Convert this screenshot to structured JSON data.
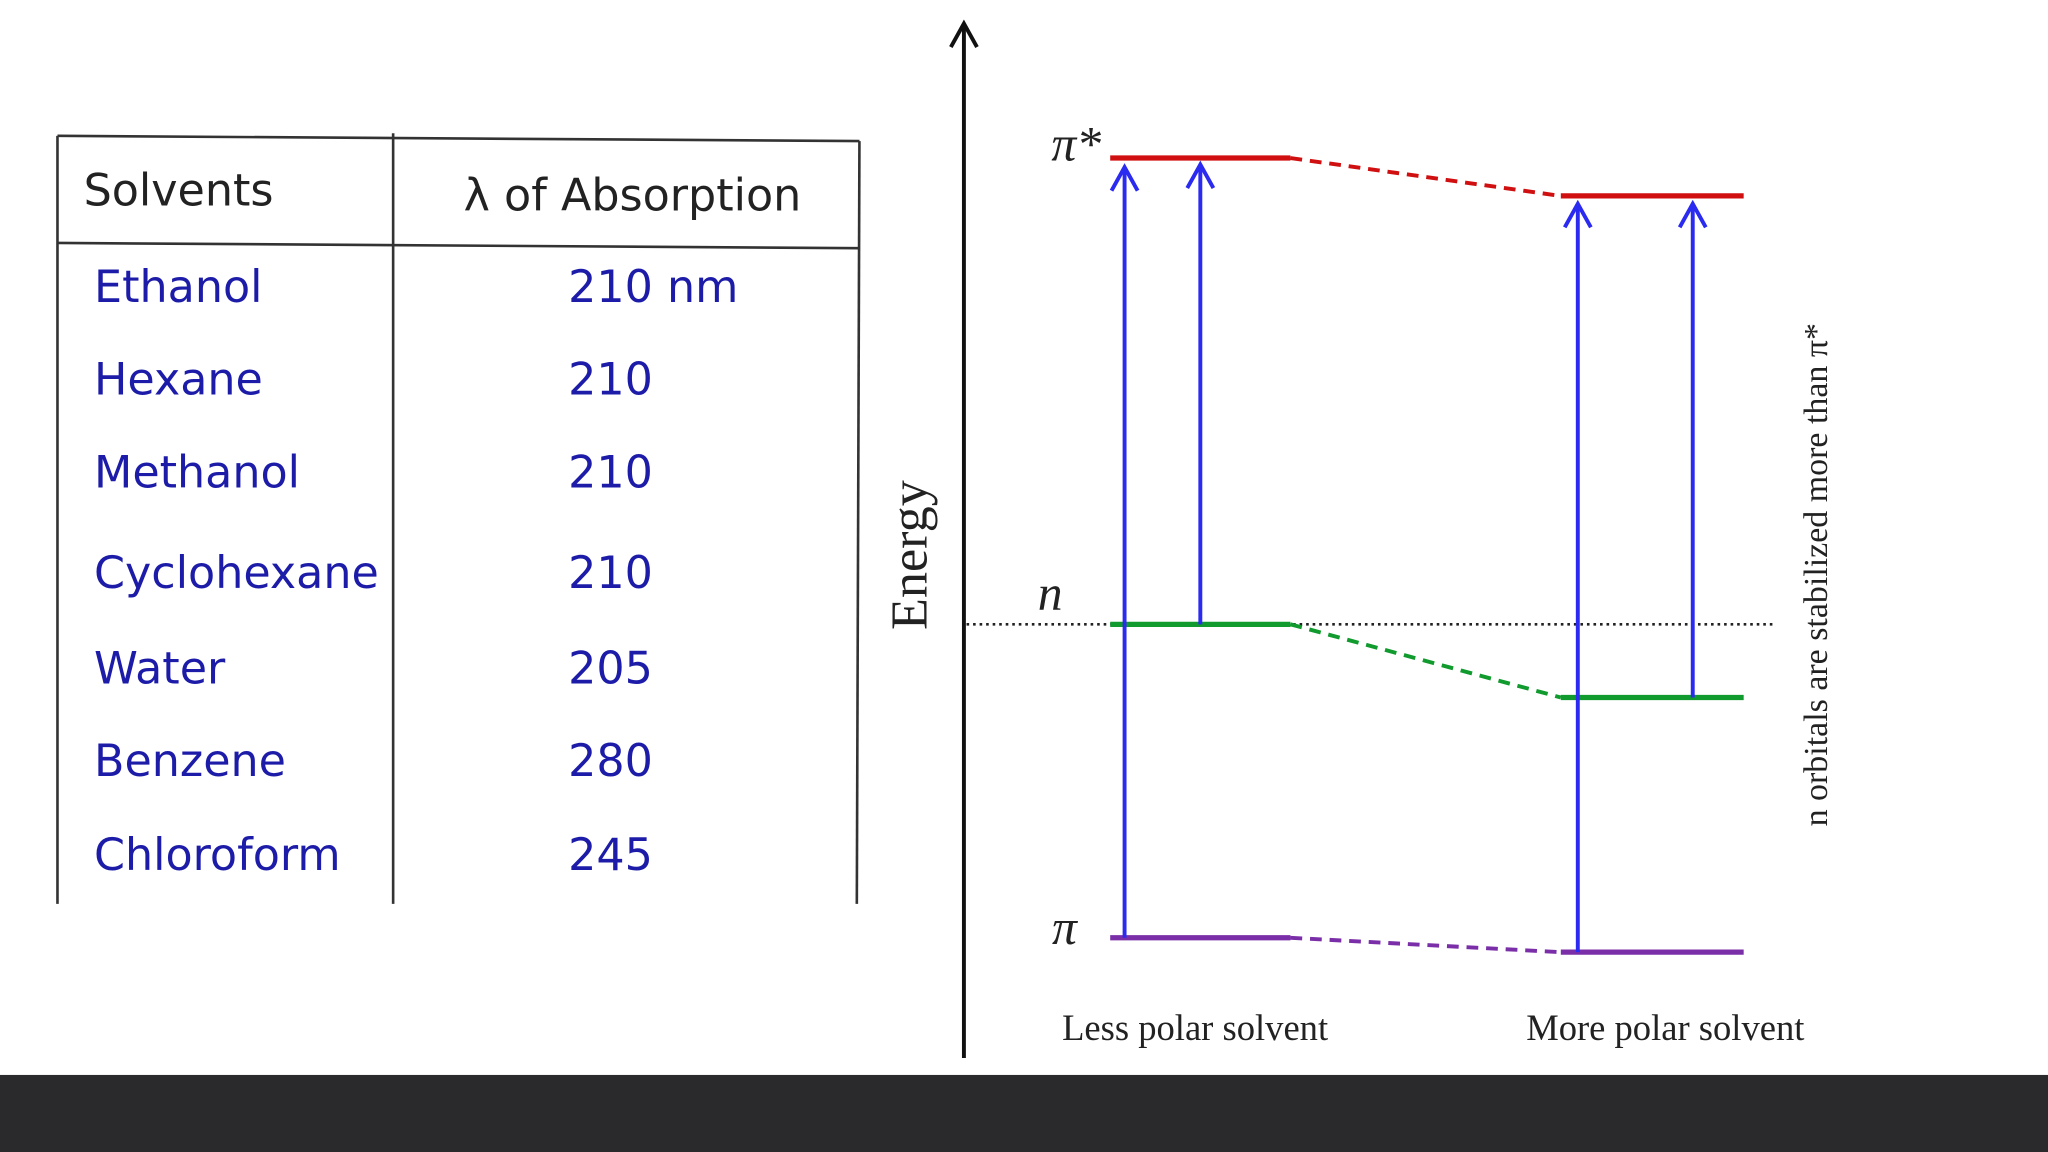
{
  "table": {
    "header": [
      "Solvents",
      "λ of Absorption"
    ],
    "rows": [
      [
        "Ethanol",
        "210 nm"
      ],
      [
        "Hexane",
        "210"
      ],
      [
        "Methanol",
        "210"
      ],
      [
        "Cyclohexane",
        "210"
      ],
      [
        "Water",
        "205"
      ],
      [
        "Benzene",
        "280"
      ],
      [
        "Chloroform",
        "245"
      ]
    ]
  },
  "diagram": {
    "axis_label": "Energy",
    "levels": [
      "π*",
      "n",
      "π"
    ],
    "columns": [
      "Less polar solvent",
      "More polar solvent"
    ],
    "note": "n orbitals are stabilized more than π*"
  }
}
